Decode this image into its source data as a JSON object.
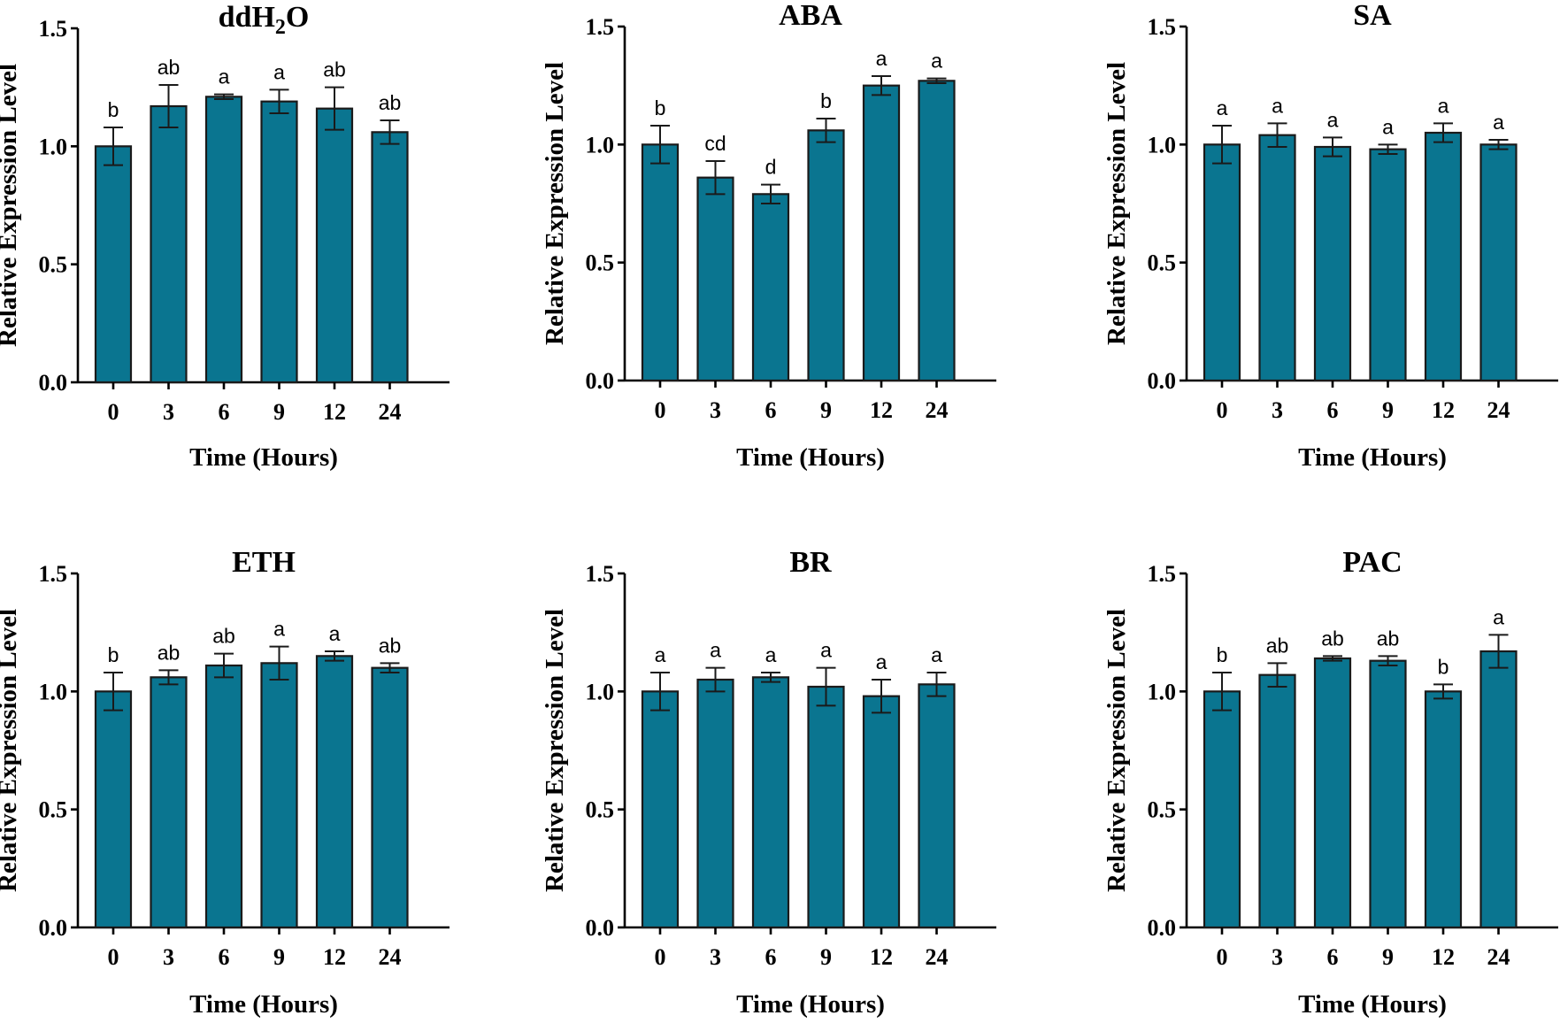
{
  "chart_data": [
    {
      "type": "bar",
      "title": "ddH2O",
      "title_parts": [
        "ddH",
        "2",
        "O"
      ],
      "categories": [
        "0",
        "3",
        "6",
        "9",
        "12",
        "24"
      ],
      "values": [
        1.0,
        1.17,
        1.21,
        1.19,
        1.16,
        1.06
      ],
      "errors": [
        0.08,
        0.09,
        0.01,
        0.05,
        0.09,
        0.05
      ],
      "letters": [
        "b",
        "ab",
        "a",
        "a",
        "ab",
        "ab"
      ],
      "xlabel": "Time (Hours)",
      "ylabel": "Relative Expression Level",
      "ylim": [
        0,
        1.5
      ],
      "yticks": [
        "0.0",
        "0.5",
        "1.0",
        "1.5"
      ],
      "color": "#0a7590"
    },
    {
      "type": "bar",
      "title": "ABA",
      "categories": [
        "0",
        "3",
        "6",
        "9",
        "12",
        "24"
      ],
      "values": [
        1.0,
        0.86,
        0.79,
        1.06,
        1.25,
        1.27
      ],
      "errors": [
        0.08,
        0.07,
        0.04,
        0.05,
        0.04,
        0.01
      ],
      "letters": [
        "b",
        "cd",
        "d",
        "b",
        "a",
        "a"
      ],
      "xlabel": "Time (Hours)",
      "ylabel": "Relative Expression Level",
      "ylim": [
        0,
        1.5
      ],
      "yticks": [
        "0.0",
        "0.5",
        "1.0",
        "1.5"
      ],
      "color": "#0a7590"
    },
    {
      "type": "bar",
      "title": "SA",
      "categories": [
        "0",
        "3",
        "6",
        "9",
        "12",
        "24"
      ],
      "values": [
        1.0,
        1.04,
        0.99,
        0.98,
        1.05,
        1.0
      ],
      "errors": [
        0.08,
        0.05,
        0.04,
        0.02,
        0.04,
        0.02
      ],
      "letters": [
        "a",
        "a",
        "a",
        "a",
        "a",
        "a"
      ],
      "xlabel": "Time (Hours)",
      "ylabel": "Relative Expression Level",
      "ylim": [
        0,
        1.5
      ],
      "yticks": [
        "0.0",
        "0.5",
        "1.0",
        "1.5"
      ],
      "color": "#0a7590"
    },
    {
      "type": "bar",
      "title": "ETH",
      "categories": [
        "0",
        "3",
        "6",
        "9",
        "12",
        "24"
      ],
      "values": [
        1.0,
        1.06,
        1.11,
        1.12,
        1.15,
        1.1
      ],
      "errors": [
        0.08,
        0.03,
        0.05,
        0.07,
        0.02,
        0.02
      ],
      "letters": [
        "b",
        "ab",
        "ab",
        "a",
        "a",
        "ab"
      ],
      "xlabel": "Time (Hours)",
      "ylabel": "Relative Expression Level",
      "ylim": [
        0,
        1.5
      ],
      "yticks": [
        "0.0",
        "0.5",
        "1.0",
        "1.5"
      ],
      "color": "#0a7590"
    },
    {
      "type": "bar",
      "title": "BR",
      "categories": [
        "0",
        "3",
        "6",
        "9",
        "12",
        "24"
      ],
      "values": [
        1.0,
        1.05,
        1.06,
        1.02,
        0.98,
        1.03
      ],
      "errors": [
        0.08,
        0.05,
        0.02,
        0.08,
        0.07,
        0.05
      ],
      "letters": [
        "a",
        "a",
        "a",
        "a",
        "a",
        "a"
      ],
      "xlabel": "Time (Hours)",
      "ylabel": "Relative Expression Level",
      "ylim": [
        0,
        1.5
      ],
      "yticks": [
        "0.0",
        "0.5",
        "1.0",
        "1.5"
      ],
      "color": "#0a7590"
    },
    {
      "type": "bar",
      "title": "PAC",
      "categories": [
        "0",
        "3",
        "6",
        "9",
        "12",
        "24"
      ],
      "values": [
        1.0,
        1.07,
        1.14,
        1.13,
        1.0,
        1.17
      ],
      "errors": [
        0.08,
        0.05,
        0.01,
        0.02,
        0.03,
        0.07
      ],
      "letters": [
        "b",
        "ab",
        "ab",
        "ab",
        "b",
        "a"
      ],
      "xlabel": "Time (Hours)",
      "ylabel": "Relative Expression Level",
      "ylim": [
        0,
        1.5
      ],
      "yticks": [
        "0.0",
        "0.5",
        "1.0",
        "1.5"
      ],
      "color": "#0a7590"
    }
  ]
}
